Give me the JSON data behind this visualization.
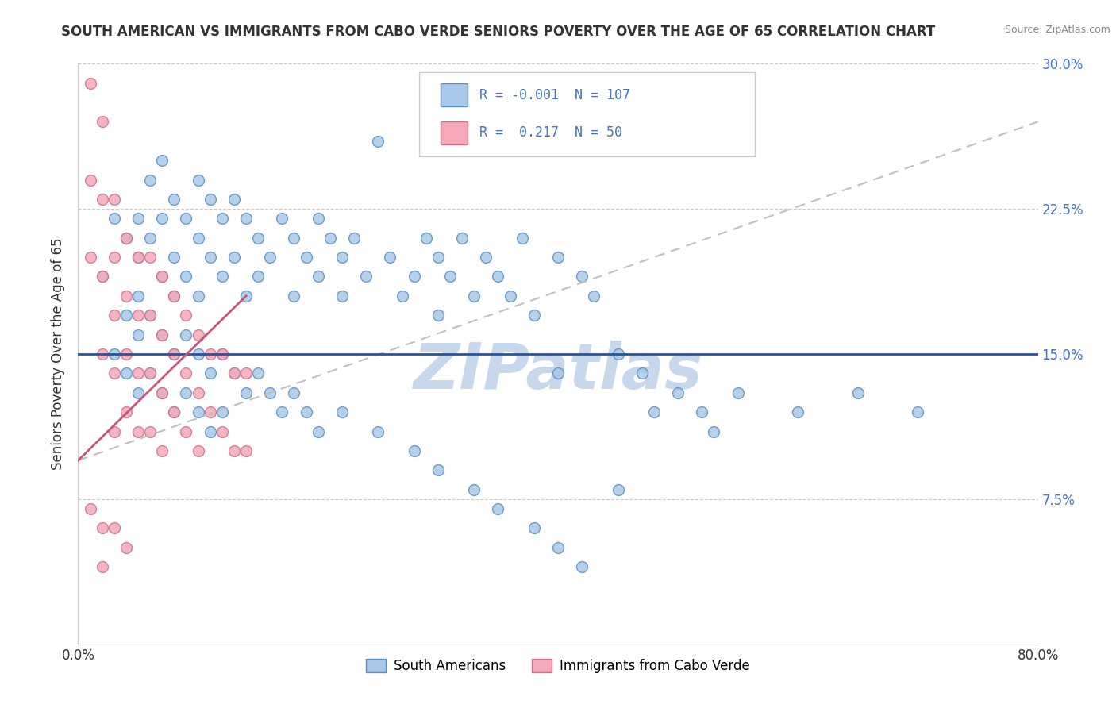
{
  "title": "SOUTH AMERICAN VS IMMIGRANTS FROM CABO VERDE SENIORS POVERTY OVER THE AGE OF 65 CORRELATION CHART",
  "source": "Source: ZipAtlas.com",
  "ylabel": "Seniors Poverty Over the Age of 65",
  "xlim": [
    0.0,
    0.8
  ],
  "ylim": [
    0.0,
    0.3
  ],
  "xticks": [
    0.0,
    0.1,
    0.2,
    0.3,
    0.4,
    0.5,
    0.6,
    0.7,
    0.8
  ],
  "yticks": [
    0.0,
    0.075,
    0.15,
    0.225,
    0.3
  ],
  "yticklabels_right": [
    "",
    "7.5%",
    "15.0%",
    "22.5%",
    "30.0%"
  ],
  "blue_R": -0.001,
  "blue_N": 107,
  "pink_R": 0.217,
  "pink_N": 50,
  "blue_color": "#A8C8E8",
  "pink_color": "#F4A8B8",
  "blue_edge_color": "#5B8EC5",
  "pink_edge_color": "#D07090",
  "blue_line_color": "#2255AA",
  "pink_line_color": "#CC5577",
  "pink_dash_color": "#C0C0C0",
  "watermark": "ZIPatlas",
  "watermark_color": "#C8D8EC",
  "legend_label_blue": "South Americans",
  "legend_label_pink": "Immigrants from Cabo Verde",
  "blue_scatter_x": [
    0.02,
    0.03,
    0.04,
    0.04,
    0.05,
    0.05,
    0.05,
    0.06,
    0.06,
    0.07,
    0.07,
    0.07,
    0.08,
    0.08,
    0.08,
    0.09,
    0.09,
    0.1,
    0.1,
    0.1,
    0.11,
    0.11,
    0.12,
    0.12,
    0.13,
    0.13,
    0.14,
    0.14,
    0.15,
    0.15,
    0.16,
    0.17,
    0.18,
    0.18,
    0.19,
    0.2,
    0.2,
    0.21,
    0.22,
    0.22,
    0.23,
    0.24,
    0.25,
    0.26,
    0.27,
    0.28,
    0.29,
    0.3,
    0.3,
    0.31,
    0.32,
    0.33,
    0.34,
    0.35,
    0.36,
    0.37,
    0.38,
    0.4,
    0.4,
    0.42,
    0.43,
    0.45,
    0.47,
    0.48,
    0.5,
    0.52,
    0.53,
    0.55,
    0.6,
    0.65,
    0.7,
    0.03,
    0.04,
    0.05,
    0.05,
    0.06,
    0.06,
    0.07,
    0.07,
    0.08,
    0.08,
    0.09,
    0.09,
    0.1,
    0.1,
    0.11,
    0.11,
    0.12,
    0.12,
    0.13,
    0.14,
    0.15,
    0.16,
    0.17,
    0.18,
    0.19,
    0.2,
    0.22,
    0.25,
    0.28,
    0.3,
    0.33,
    0.35,
    0.38,
    0.4,
    0.42,
    0.45
  ],
  "blue_scatter_y": [
    0.19,
    0.22,
    0.21,
    0.17,
    0.22,
    0.2,
    0.18,
    0.24,
    0.21,
    0.25,
    0.22,
    0.19,
    0.23,
    0.2,
    0.18,
    0.22,
    0.19,
    0.24,
    0.21,
    0.18,
    0.23,
    0.2,
    0.22,
    0.19,
    0.23,
    0.2,
    0.22,
    0.18,
    0.21,
    0.19,
    0.2,
    0.22,
    0.21,
    0.18,
    0.2,
    0.22,
    0.19,
    0.21,
    0.2,
    0.18,
    0.21,
    0.19,
    0.26,
    0.2,
    0.18,
    0.19,
    0.21,
    0.2,
    0.17,
    0.19,
    0.21,
    0.18,
    0.2,
    0.19,
    0.18,
    0.21,
    0.17,
    0.2,
    0.14,
    0.19,
    0.18,
    0.15,
    0.14,
    0.12,
    0.13,
    0.12,
    0.11,
    0.13,
    0.12,
    0.13,
    0.12,
    0.15,
    0.14,
    0.16,
    0.13,
    0.17,
    0.14,
    0.16,
    0.13,
    0.15,
    0.12,
    0.16,
    0.13,
    0.15,
    0.12,
    0.14,
    0.11,
    0.15,
    0.12,
    0.14,
    0.13,
    0.14,
    0.13,
    0.12,
    0.13,
    0.12,
    0.11,
    0.12,
    0.11,
    0.1,
    0.09,
    0.08,
    0.07,
    0.06,
    0.05,
    0.04,
    0.08
  ],
  "pink_scatter_x": [
    0.01,
    0.01,
    0.01,
    0.02,
    0.02,
    0.02,
    0.02,
    0.02,
    0.03,
    0.03,
    0.03,
    0.03,
    0.03,
    0.04,
    0.04,
    0.04,
    0.04,
    0.05,
    0.05,
    0.05,
    0.05,
    0.06,
    0.06,
    0.06,
    0.06,
    0.07,
    0.07,
    0.07,
    0.07,
    0.08,
    0.08,
    0.08,
    0.09,
    0.09,
    0.09,
    0.1,
    0.1,
    0.1,
    0.11,
    0.11,
    0.12,
    0.12,
    0.13,
    0.13,
    0.14,
    0.14,
    0.01,
    0.02,
    0.03,
    0.04
  ],
  "pink_scatter_y": [
    0.29,
    0.24,
    0.2,
    0.27,
    0.23,
    0.19,
    0.15,
    0.04,
    0.23,
    0.2,
    0.17,
    0.14,
    0.11,
    0.21,
    0.18,
    0.15,
    0.12,
    0.2,
    0.17,
    0.14,
    0.11,
    0.2,
    0.17,
    0.14,
    0.11,
    0.19,
    0.16,
    0.13,
    0.1,
    0.18,
    0.15,
    0.12,
    0.17,
    0.14,
    0.11,
    0.16,
    0.13,
    0.1,
    0.15,
    0.12,
    0.15,
    0.11,
    0.14,
    0.1,
    0.14,
    0.1,
    0.07,
    0.06,
    0.06,
    0.05
  ],
  "blue_trend_y_intercept": 0.15,
  "blue_trend_slope": 0.0,
  "pink_trend_x_start": 0.0,
  "pink_trend_x_end": 0.8,
  "pink_trend_y_start": 0.095,
  "pink_trend_y_end": 0.27
}
